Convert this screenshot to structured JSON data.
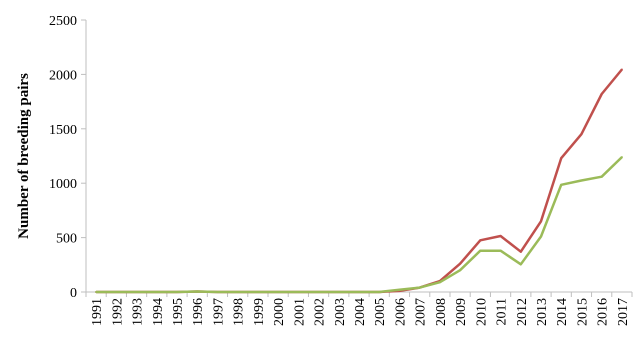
{
  "chart_data": {
    "type": "line",
    "title": "",
    "xlabel": "",
    "ylabel": "Number of breeding pairs",
    "ylim": [
      0,
      2500
    ],
    "yticks": [
      0,
      500,
      1000,
      1500,
      2000,
      2500
    ],
    "grid": false,
    "legend": "none",
    "x": [
      "1991",
      "1992",
      "1993",
      "1994",
      "1995",
      "1996",
      "1997",
      "1998",
      "1999",
      "2000",
      "2001",
      "2002",
      "2003",
      "2004",
      "2005",
      "2006",
      "2007",
      "2008",
      "2009",
      "2010",
      "2011",
      "2012",
      "2013",
      "2014",
      "2015",
      "2016",
      "2017"
    ],
    "series": [
      {
        "color": "#c0504d",
        "values": [
          0,
          0,
          0,
          0,
          0,
          5,
          0,
          0,
          0,
          0,
          0,
          0,
          0,
          0,
          0,
          10,
          40,
          100,
          260,
          475,
          515,
          370,
          650,
          1230,
          1450,
          1820,
          2045
        ]
      },
      {
        "color": "#9bbb59",
        "values": [
          0,
          0,
          0,
          0,
          0,
          5,
          0,
          0,
          0,
          0,
          0,
          0,
          0,
          0,
          0,
          20,
          40,
          90,
          200,
          380,
          380,
          255,
          510,
          985,
          1025,
          1060,
          1240
        ]
      }
    ]
  }
}
